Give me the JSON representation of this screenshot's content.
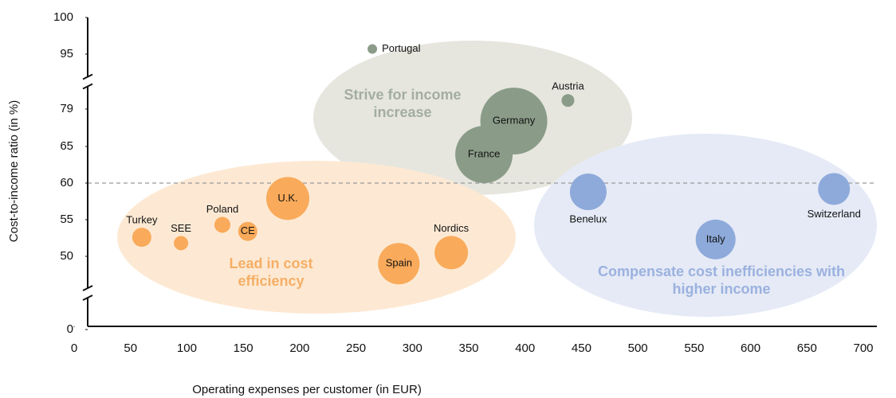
{
  "chart_data": {
    "type": "bubble",
    "xlabel": "Operating expenses per customer (in EUR)",
    "ylabel": "Cost-to-income ratio (in %)",
    "xlim": [
      0,
      700
    ],
    "xticks": [
      0,
      50,
      100,
      150,
      200,
      250,
      300,
      350,
      400,
      450,
      500,
      550,
      600,
      650,
      700
    ],
    "ylim": [
      0,
      100
    ],
    "yticks": [
      0,
      50,
      55,
      60,
      65,
      79,
      95,
      100
    ],
    "ybreaks": [
      [
        0,
        50
      ],
      [
        79,
        95
      ]
    ],
    "hline": 60,
    "series": [
      {
        "name": "Strive for income increase",
        "color": "#8a9c88",
        "area_color": "#e6e6df",
        "text_color": "#a3ada0",
        "labels": [
          "Portugal",
          "Austria",
          "Germany",
          "France"
        ],
        "x": [
          264.5,
          438,
          390,
          363.5
        ],
        "values": [
          95.7,
          81.5,
          74.5,
          63.9
        ],
        "sizes": [
          6,
          8,
          42,
          36
        ]
      },
      {
        "name": "Lead in cost efficiency",
        "color": "#f9aa5a",
        "area_color": "#fde9d3",
        "text_color": "#f5ae66",
        "labels": [
          "Turkey",
          "SEE",
          "Poland",
          "CE",
          "U.K.",
          "Spain",
          "Nordics"
        ],
        "x": [
          60,
          94.8,
          131.5,
          154,
          189.5,
          288,
          334.5
        ],
        "values": [
          52.6,
          51.8,
          54.3,
          53.4,
          57.9,
          45,
          50.5
        ],
        "sizes": [
          12,
          9,
          10,
          12,
          27,
          26,
          21
        ]
      },
      {
        "name": "Compensate cost inefficiencies with higher income",
        "color": "#8eaadb",
        "area_color": "#e5eaf6",
        "text_color": "#9bb1df",
        "labels": [
          "Benelux",
          "Italy",
          "Switzerland"
        ],
        "x": [
          456,
          569,
          674
        ],
        "values": [
          58.8,
          52.3,
          59.2
        ],
        "sizes": [
          23,
          25,
          20
        ]
      }
    ]
  }
}
